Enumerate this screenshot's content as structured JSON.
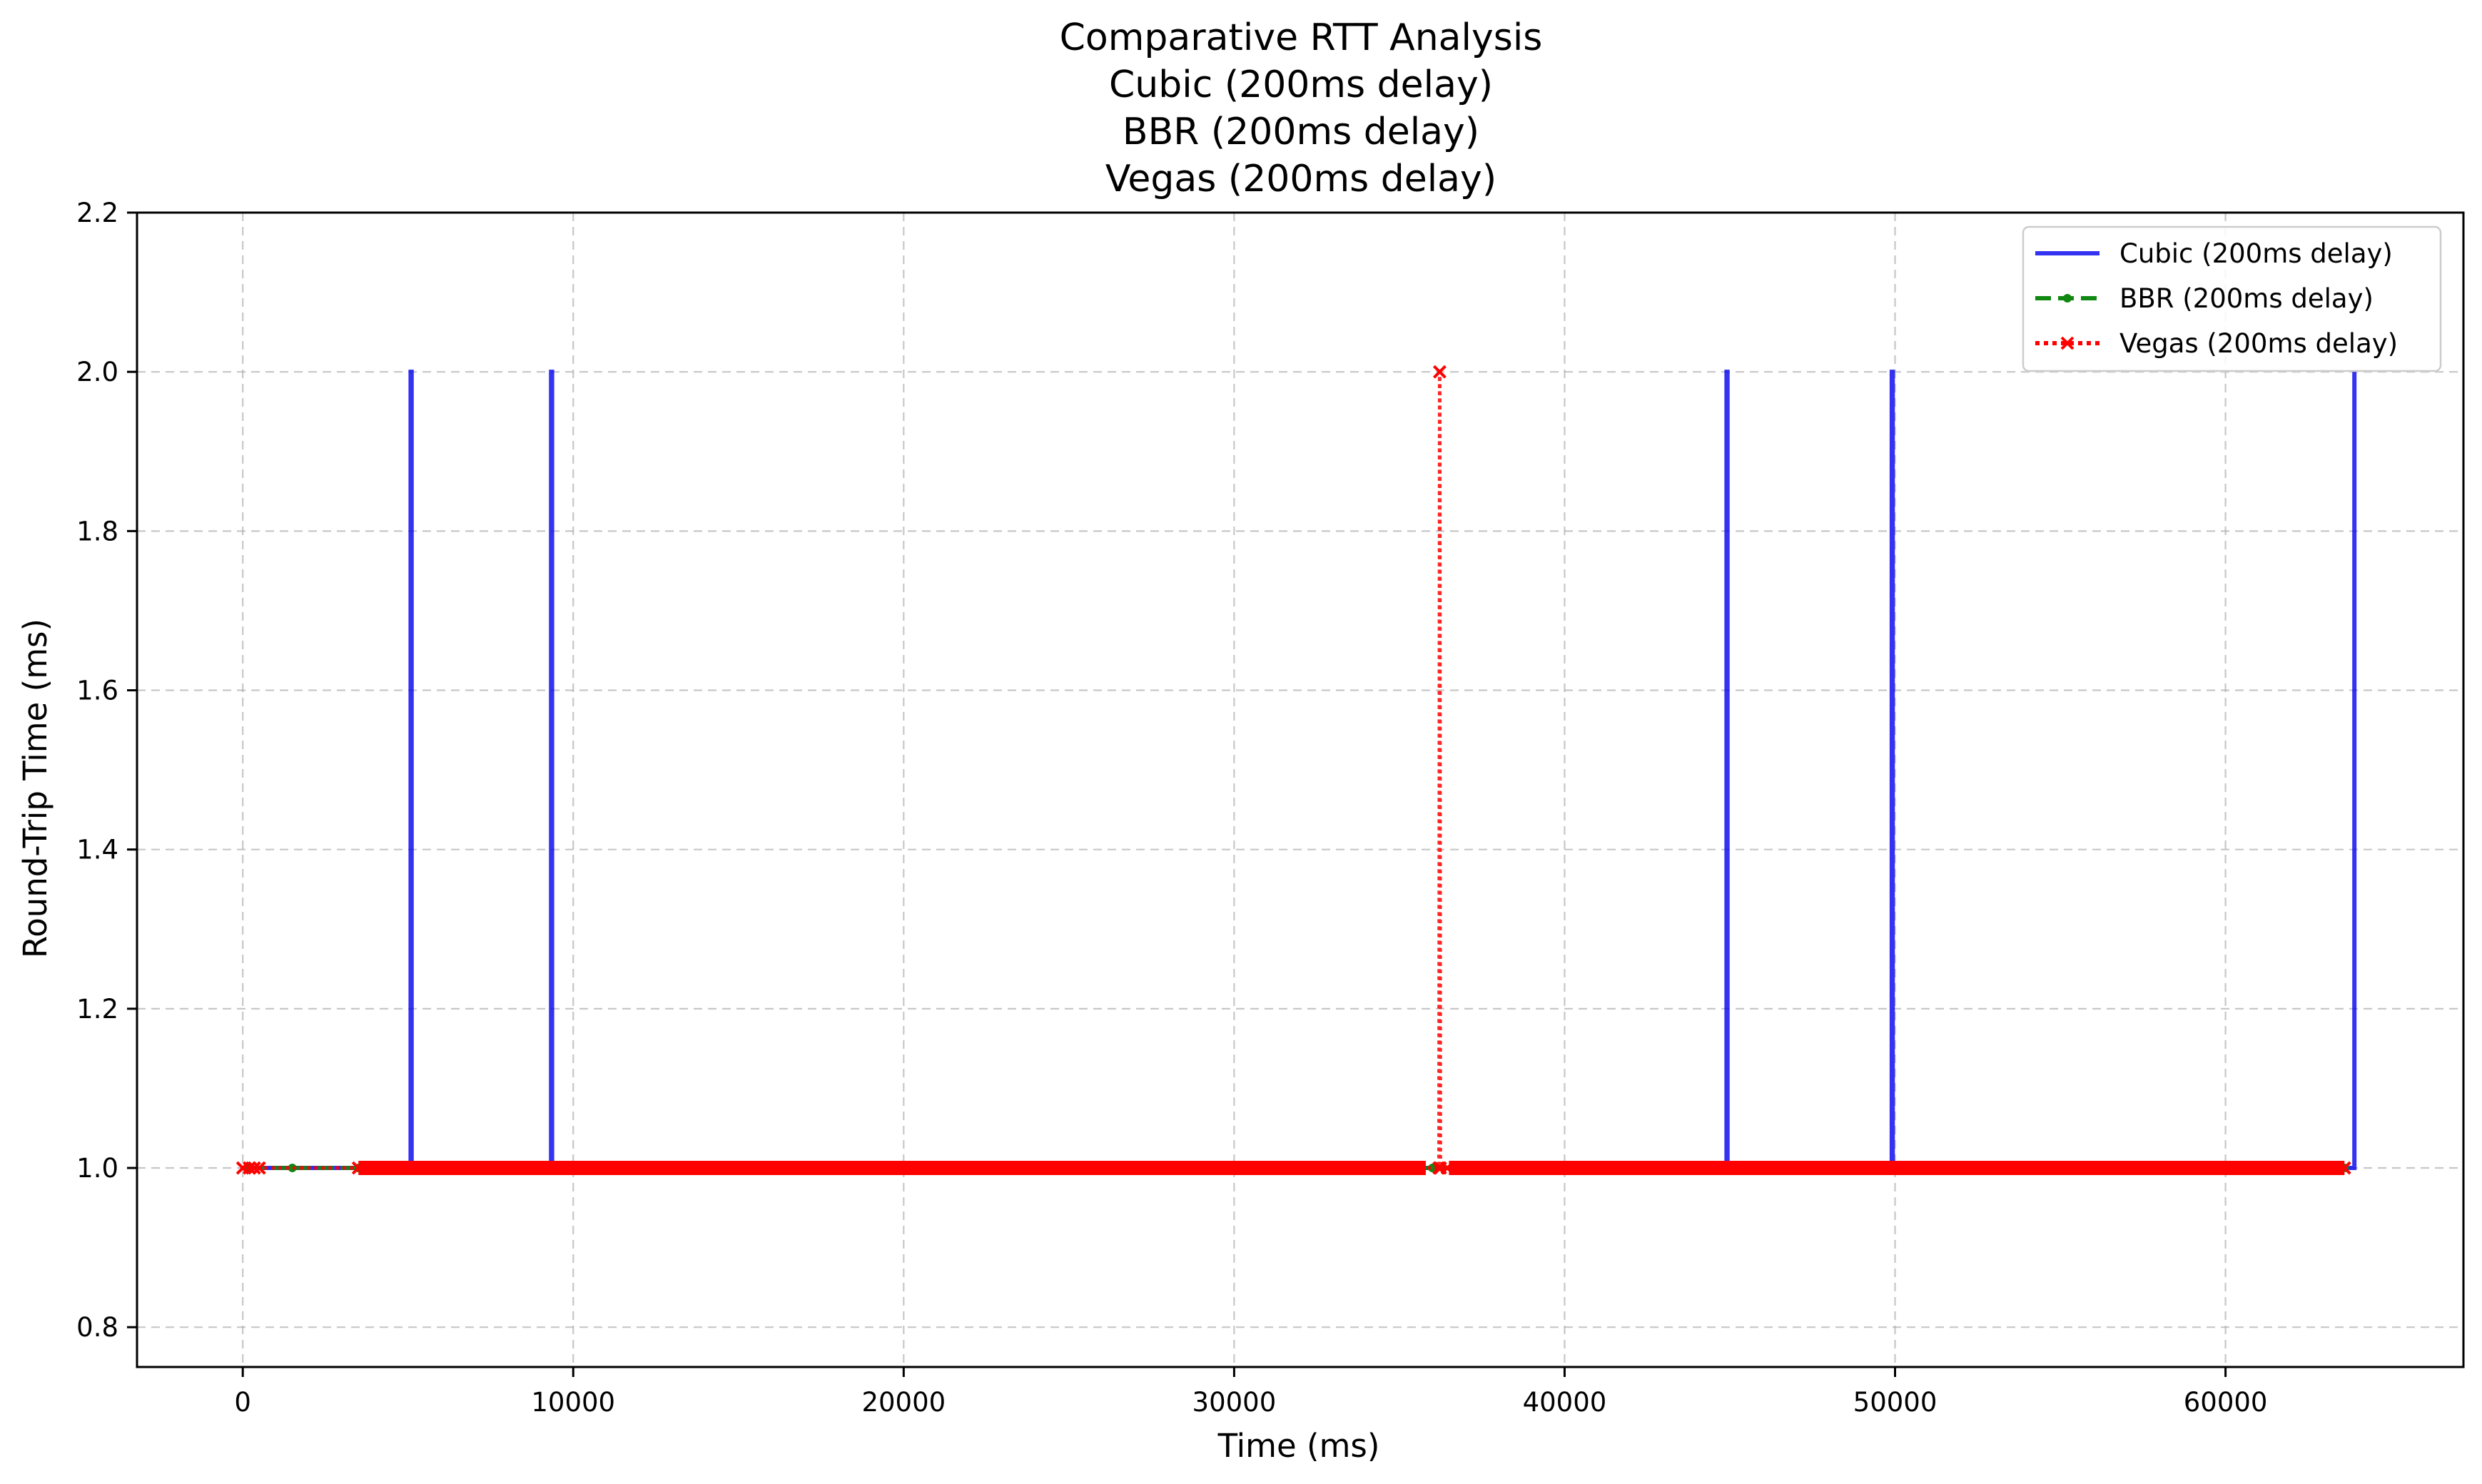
{
  "chart_data": {
    "type": "line",
    "title_lines": [
      "Comparative RTT Analysis",
      "Cubic (200ms delay)",
      "BBR (200ms delay)",
      "Vegas (200ms delay)"
    ],
    "xlabel": "Time (ms)",
    "ylabel": "Round-Trip Time (ms)",
    "xlim": [
      -3200,
      67200
    ],
    "ylim": [
      0.75,
      2.2
    ],
    "xticks": [
      0,
      10000,
      20000,
      30000,
      40000,
      50000,
      60000
    ],
    "yticks": [
      0.8,
      1.0,
      1.2,
      1.4,
      1.6,
      1.8,
      2.0,
      2.2
    ],
    "ytick_labels": [
      "0.8",
      "1.0",
      "1.2",
      "1.4",
      "1.6",
      "1.8",
      "2.0",
      "2.2"
    ],
    "grid": true,
    "legend_position": "top-right",
    "series": [
      {
        "name": "Cubic (200ms delay)",
        "color": "#0000ee",
        "style": "solid",
        "marker": "none",
        "x": [
          500,
          5080,
          5080,
          5110,
          5110,
          9330,
          9330,
          9360,
          9360,
          44900,
          44900,
          44930,
          44930,
          49900,
          49900,
          49930,
          49930,
          63900,
          63900
        ],
        "y": [
          1.0,
          1.0,
          2.0,
          2.0,
          1.0,
          1.0,
          2.0,
          2.0,
          1.0,
          1.0,
          2.0,
          2.0,
          1.0,
          1.0,
          2.0,
          2.0,
          1.0,
          1.0,
          2.0
        ]
      },
      {
        "name": "BBR (200ms delay)",
        "color": "#118811",
        "style": "dashed",
        "marker": "dot",
        "x": [
          200,
          1500,
          3500,
          36000,
          63600
        ],
        "y": [
          1.0,
          1.0,
          1.0,
          1.0,
          1.0
        ]
      },
      {
        "name": "Vegas (200ms delay)",
        "color": "#ff0000",
        "style": "dotted",
        "marker": "x",
        "x": [
          0,
          200,
          350,
          500,
          3500,
          36200,
          36220,
          36240,
          36450,
          63600
        ],
        "y": [
          1.0,
          1.0,
          1.0,
          1.0,
          1.0,
          1.0,
          2.0,
          1.0,
          1.0,
          1.0
        ],
        "dense_spans": [
          [
            3500,
            35800
          ],
          [
            36500,
            63600
          ]
        ]
      }
    ]
  }
}
